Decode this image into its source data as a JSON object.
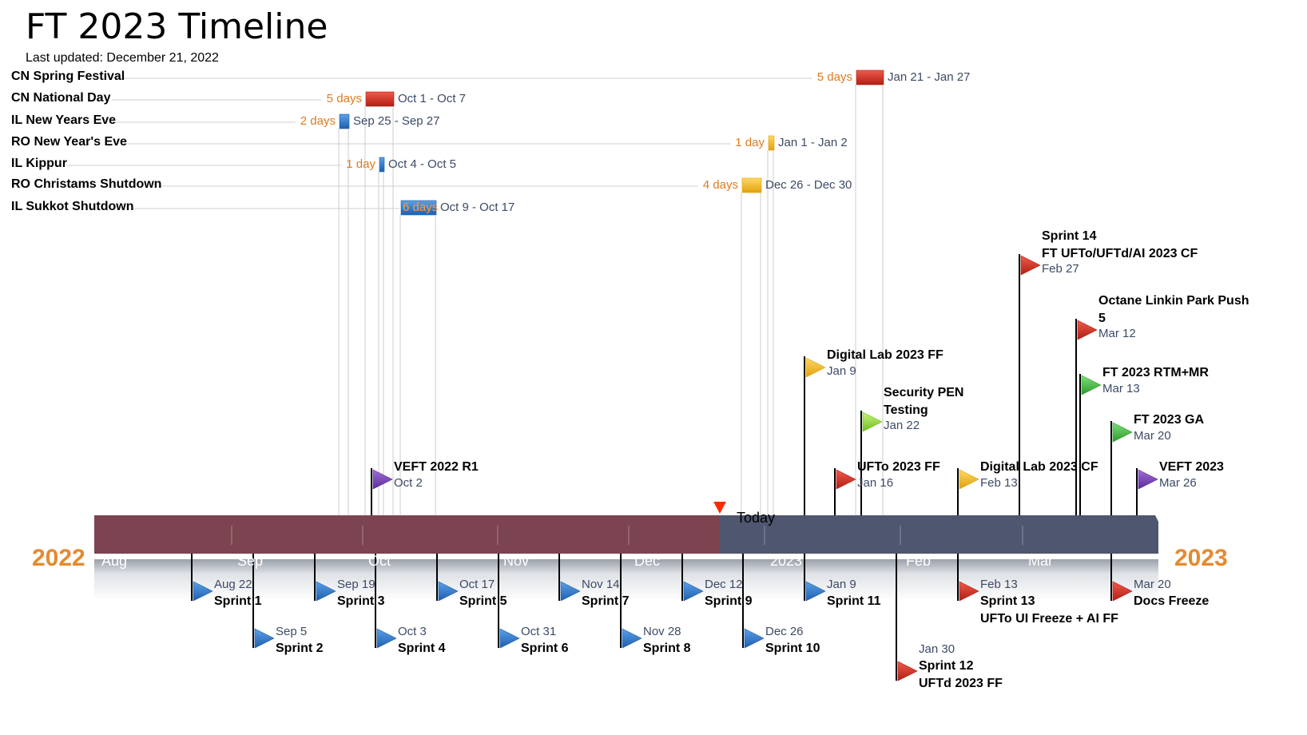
{
  "title": "FT 2023 Timeline",
  "subtitle": "Last updated: December 21, 2022",
  "colors": {
    "past": "#7b4450",
    "future": "#4e5670",
    "year": "#e68a2e",
    "duration": "#e07b1f",
    "date": "#3c4a66",
    "today": "#ff2a00"
  },
  "timeline": {
    "year_start": "2022",
    "year_end": "2023",
    "today_label": "Today",
    "today_date": "2022-12-21",
    "months": [
      {
        "label": "Aug",
        "date": "2022-08-01"
      },
      {
        "label": "Sep",
        "date": "2022-09-01"
      },
      {
        "label": "Oct",
        "date": "2022-10-01"
      },
      {
        "label": "Nov",
        "date": "2022-11-01"
      },
      {
        "label": "Dec",
        "date": "2022-12-01"
      },
      {
        "label": "2023",
        "date": "2023-01-01"
      },
      {
        "label": "Feb",
        "date": "2023-02-01"
      },
      {
        "label": "Mar",
        "date": "2023-03-01"
      }
    ]
  },
  "tasks": [
    {
      "name": "CN Spring Festival",
      "duration": "5 days",
      "range": "Jan 21 - Jan 27",
      "start": "2023-01-21",
      "end": "2023-01-27",
      "color": "red"
    },
    {
      "name": "CN National Day",
      "duration": "5 days",
      "range": "Oct 1 - Oct 7",
      "start": "2022-10-01",
      "end": "2022-10-07",
      "color": "red"
    },
    {
      "name": "IL New Years Eve",
      "duration": "2 days",
      "range": "Sep 25 - Sep 27",
      "start": "2022-09-25",
      "end": "2022-09-27",
      "color": "blue"
    },
    {
      "name": "RO New Year's Eve",
      "duration": "1 day",
      "range": "Jan 1 - Jan 2",
      "start": "2023-01-01",
      "end": "2023-01-02",
      "color": "yellow"
    },
    {
      "name": "IL Kippur",
      "duration": "1 day",
      "range": "Oct 4 - Oct 5",
      "start": "2022-10-04",
      "end": "2022-10-05",
      "color": "blue"
    },
    {
      "name": "RO Christams Shutdown",
      "duration": "4 days",
      "range": "Dec 26 - Dec 30",
      "start": "2022-12-26",
      "end": "2022-12-30",
      "color": "yellow"
    },
    {
      "name": "IL Sukkot Shutdown",
      "duration": "6 days",
      "range": "Oct 9 - Oct 17",
      "start": "2022-10-09",
      "end": "2022-10-17",
      "color": "blue",
      "inside": true
    }
  ],
  "milestones_above": [
    {
      "name": "VEFT 2022 R1",
      "date_label": "Oct 2",
      "date": "2022-10-02",
      "color": "purple",
      "level": 0
    },
    {
      "name": "Digital Lab 2023 FF",
      "date_label": "Jan 9",
      "date": "2023-01-09",
      "color": "yellow",
      "level": 3
    },
    {
      "name": "Security PEN Testing",
      "name_lines": [
        "Security PEN",
        "Testing"
      ],
      "date_label": "Jan 22",
      "date": "2023-01-22",
      "color": "lime",
      "level": 2
    },
    {
      "name": "UFTo 2023 FF",
      "date_label": "Jan 16",
      "date": "2023-01-16",
      "color": "red",
      "level": 0
    },
    {
      "name": "Digital Lab 2023 CF",
      "date_label": "Feb 13",
      "date": "2023-02-13",
      "color": "yellow",
      "level": 0
    },
    {
      "name": "Sprint 14 FT UFTo/UFTd/AI 2023 CF",
      "name_lines": [
        "Sprint 14",
        "FT UFTo/UFTd/AI 2023 CF"
      ],
      "date_label": "Feb 27",
      "date": "2023-02-27",
      "color": "red",
      "level": 6
    },
    {
      "name": "Octane Linkin Park Push 5",
      "name_lines": [
        "Octane Linkin Park Push",
        "5"
      ],
      "date_label": "Mar 12",
      "date": "2023-03-12",
      "color": "red",
      "level": 5
    },
    {
      "name": "FT 2023 RTM+MR",
      "date_label": "Mar 13",
      "date": "2023-03-13",
      "color": "green",
      "level": 4
    },
    {
      "name": "FT 2023 GA",
      "date_label": "Mar 20",
      "date": "2023-03-20",
      "color": "green",
      "level": 1
    },
    {
      "name": "VEFT 2023",
      "date_label": "Mar 26",
      "date": "2023-03-26",
      "color": "purple",
      "level": 0
    }
  ],
  "milestones_below": [
    {
      "name": "Sprint 1",
      "date_label": "Aug 22",
      "date": "2022-08-22",
      "color": "blue",
      "level": 0
    },
    {
      "name": "Sprint 2",
      "date_label": "Sep 5",
      "date": "2022-09-05",
      "color": "blue",
      "level": 1
    },
    {
      "name": "Sprint 3",
      "date_label": "Sep 19",
      "date": "2022-09-19",
      "color": "blue",
      "level": 0
    },
    {
      "name": "Sprint 4",
      "date_label": "Oct 3",
      "date": "2022-10-03",
      "color": "blue",
      "level": 1
    },
    {
      "name": "Sprint 5",
      "date_label": "Oct 17",
      "date": "2022-10-17",
      "color": "blue",
      "level": 0
    },
    {
      "name": "Sprint 6",
      "date_label": "Oct 31",
      "date": "2022-10-31",
      "color": "blue",
      "level": 1
    },
    {
      "name": "Sprint 7",
      "date_label": "Nov 14",
      "date": "2022-11-14",
      "color": "blue",
      "level": 0
    },
    {
      "name": "Sprint 8",
      "date_label": "Nov 28",
      "date": "2022-11-28",
      "color": "blue",
      "level": 1
    },
    {
      "name": "Sprint 9",
      "date_label": "Dec 12",
      "date": "2022-12-12",
      "color": "blue",
      "level": 0
    },
    {
      "name": "Sprint 10",
      "date_label": "Dec 26",
      "date": "2022-12-26",
      "color": "blue",
      "level": 1
    },
    {
      "name": "Sprint 11",
      "date_label": "Jan 9",
      "date": "2023-01-09",
      "color": "blue",
      "level": 0
    },
    {
      "name": "Sprint 12 UFTd 2023 FF",
      "name_lines": [
        "Sprint 12",
        "UFTd 2023 FF"
      ],
      "date_label": "Jan 30",
      "date": "2023-01-30",
      "color": "red",
      "level": 2
    },
    {
      "name": "Sprint 13 UFTo UI Freeze + AI FF",
      "name_lines": [
        "Sprint 13",
        "UFTo UI Freeze + AI FF"
      ],
      "date_label": "Feb 13",
      "date": "2023-02-13",
      "color": "red",
      "level": 0
    },
    {
      "name": "Docs Freeze",
      "date_label": "Mar 20",
      "date": "2023-03-20",
      "color": "red",
      "level": 0
    }
  ]
}
